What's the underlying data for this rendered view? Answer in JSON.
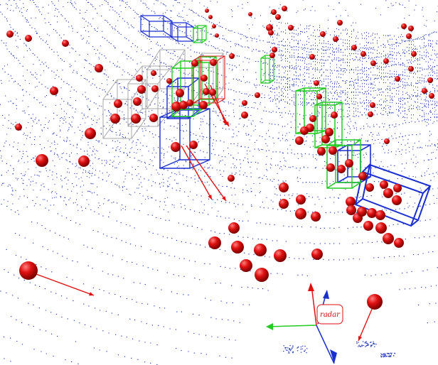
{
  "scene": {
    "sensor_label": "radar",
    "colors": {
      "lidar_points": "#1a2fb8",
      "radar_detections": "#d20000",
      "velocity_arrow": "#e01010",
      "box_gray": "#a8a8a8",
      "box_green": "#22cc22",
      "box_blue": "#1a2fd0",
      "box_red": "#e02020",
      "axis_x": "#22cc22",
      "axis_y": "#1a2fd0",
      "axis_z": "#e01010",
      "label_border": "#e01010"
    }
  }
}
